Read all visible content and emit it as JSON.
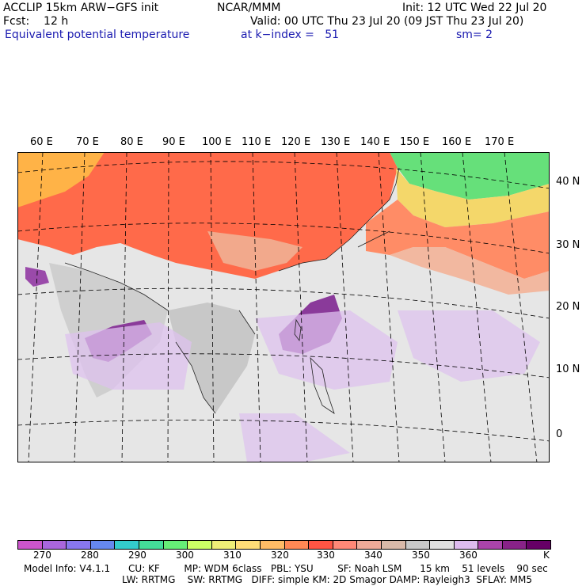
{
  "header": {
    "line1_left": "ACCLIP 15km ARW−GFS init",
    "line1_center": "NCAR/MMM",
    "line1_right": "Init: 12 UTC Wed 22 Jul 20",
    "line2_left": "Fcst:    12 h",
    "line2_right": "Valid: 00 UTC Thu 23 Jul 20 (09 JST Thu 23 Jul 20)",
    "line3_left": "Equivalent potential temperature",
    "line3_center": "at k−index =   51",
    "line3_right": "sm= 2"
  },
  "map": {
    "lon_labels": [
      "60 E",
      "70 E",
      "80 E",
      "90 E",
      "100 E",
      "110 E",
      "120 E",
      "130 E",
      "140 E",
      "150 E",
      "160 E",
      "170 E"
    ],
    "lat_labels": [
      "40 N",
      "30 N",
      "20 N",
      "10 N",
      "0"
    ]
  },
  "colorbar": {
    "colors": [
      "#cc55cc",
      "#aa66dd",
      "#8877ee",
      "#6688ee",
      "#33cccc",
      "#44dd99",
      "#66ee77",
      "#ccff66",
      "#eeee77",
      "#ffdd77",
      "#ffbb66",
      "#ff8855",
      "#ff5544",
      "#ff8877",
      "#eeaa99",
      "#d9b9a9",
      "#c8c8c8",
      "#e0e0e0",
      "#ddbbee",
      "#aa44aa",
      "#882288",
      "#660066"
    ],
    "labels": [
      "270",
      "280",
      "290",
      "300",
      "310",
      "320",
      "330",
      "340",
      "350",
      "360"
    ],
    "unit": "K"
  },
  "footer": {
    "line1": "Model Info: V4.1.1      CU: KF        MP: WDM 6class   PBL: YSU        SF: Noah LSM      15 km    51 levels    90 sec",
    "line2": "LW: RRTMG    SW: RRTMG   DIFF: simple KM: 2D Smagor DAMP: Rayleigh3  SFLAY: MM5"
  }
}
